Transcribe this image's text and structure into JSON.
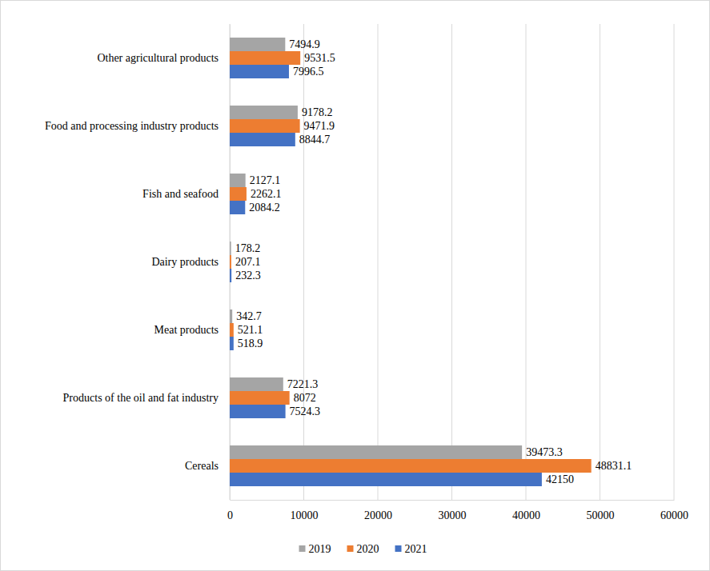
{
  "chart_data": {
    "type": "bar",
    "orientation": "horizontal",
    "grid": true,
    "data_labels": true,
    "legend": "bottom",
    "categories": [
      "Cereals",
      "Products of the oil and fat industry",
      "Meat products",
      "Dairy products",
      "Fish and seafood",
      "Food and processing industry products",
      "Other agricultural products"
    ],
    "series": [
      {
        "name": "2019",
        "color": "#a5a5a5",
        "values": [
          39473.3,
          7221.3,
          342.7,
          178.2,
          2127.1,
          9178.2,
          7494.9
        ]
      },
      {
        "name": "2020",
        "color": "#ed7d31",
        "values": [
          48831.1,
          8072,
          521.1,
          207.1,
          2262.1,
          9471.9,
          9531.5
        ]
      },
      {
        "name": "2021",
        "color": "#4472c4",
        "values": [
          42150,
          7524.3,
          518.9,
          232.3,
          2084.2,
          8844.7,
          7996.5
        ]
      }
    ],
    "xlim": [
      0,
      60000
    ],
    "xticks": [
      0,
      10000,
      20000,
      30000,
      40000,
      50000,
      60000
    ]
  }
}
